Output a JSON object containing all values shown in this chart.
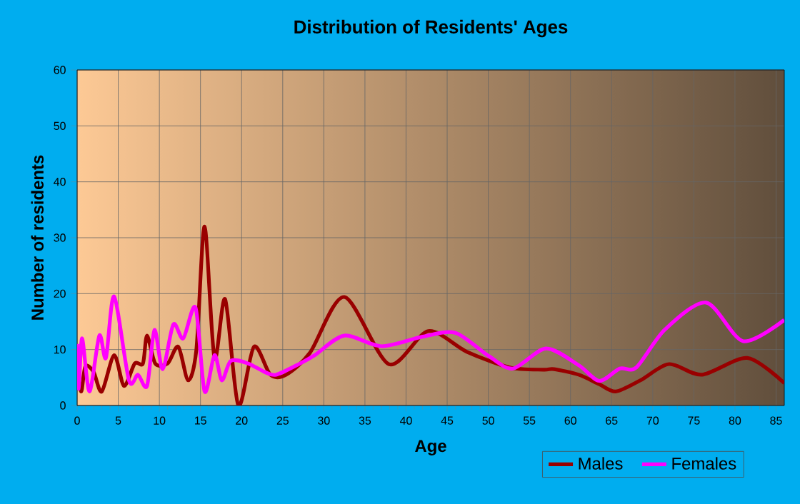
{
  "chart_data": {
    "type": "line",
    "title": "Distribution of Residents' Ages",
    "xlabel": "Age",
    "ylabel": "Number of residents",
    "xlim": [
      0,
      86
    ],
    "ylim": [
      0,
      60
    ],
    "xticks": [
      0,
      5,
      10,
      15,
      20,
      25,
      30,
      35,
      40,
      45,
      50,
      55,
      60,
      65,
      70,
      75,
      80,
      85
    ],
    "yticks": [
      0,
      10,
      20,
      30,
      40,
      50,
      60
    ],
    "grid": true,
    "legend": "bottom right",
    "marker": "none",
    "line_style": "solid",
    "series": [
      {
        "name": "Males",
        "color": "#990000",
        "x": [
          0,
          0.5,
          1,
          2,
          3,
          4.5,
          5.7,
          7,
          8,
          8.5,
          9.5,
          11,
          12.3,
          13.5,
          14.5,
          15.5,
          16.7,
          18,
          19.6,
          21.5,
          23.5,
          25.4,
          28.3,
          32.5,
          37.9,
          42.7,
          47.4,
          52.6,
          56.7,
          58,
          61,
          63.5,
          65.5,
          68.5,
          72,
          76,
          81.5,
          86
        ],
        "values": [
          6.5,
          2.5,
          7,
          6,
          2.5,
          9,
          3.5,
          7.5,
          7.5,
          12.5,
          7.5,
          7.5,
          10.5,
          4.5,
          10,
          32,
          8.5,
          19,
          0,
          10.5,
          5.5,
          5.5,
          9.4,
          19.4,
          7.4,
          13.3,
          9.6,
          6.8,
          6.4,
          6.5,
          5.5,
          3.8,
          2.5,
          4.5,
          7.4,
          5.5,
          8.5,
          4
        ]
      },
      {
        "name": "Females",
        "color": "#ff00ff",
        "x": [
          0,
          0.2,
          0.6,
          1.5,
          2.7,
          3.5,
          4.5,
          6.3,
          7.4,
          8.5,
          9.4,
          10.4,
          11.7,
          12.9,
          14.4,
          15.5,
          16.7,
          17.6,
          18.7,
          20.8,
          22.8,
          24.2,
          27.1,
          28.9,
          32.5,
          37,
          42,
          46,
          50,
          53,
          57,
          61,
          63.5,
          66,
          68,
          71.5,
          76.5,
          81,
          86
        ],
        "values": [
          11,
          3,
          12,
          2.5,
          12.5,
          8.5,
          19.5,
          4.5,
          5.5,
          3.5,
          13.5,
          6.5,
          14.5,
          12,
          17.5,
          2.5,
          9,
          4.5,
          8,
          7.5,
          6,
          5.5,
          7.5,
          9,
          12.5,
          10.6,
          12.3,
          13,
          8.9,
          6.6,
          10.2,
          7.2,
          4.4,
          6.6,
          6.8,
          13.6,
          18.4,
          11.5,
          15.3
        ]
      }
    ]
  }
}
